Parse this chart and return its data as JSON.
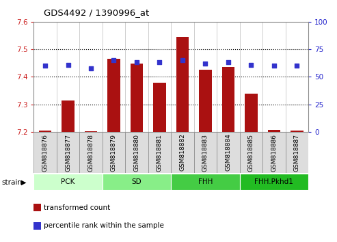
{
  "title": "GDS4492 / 1390996_at",
  "samples": [
    "GSM818876",
    "GSM818877",
    "GSM818878",
    "GSM818879",
    "GSM818880",
    "GSM818881",
    "GSM818882",
    "GSM818883",
    "GSM818884",
    "GSM818885",
    "GSM818886",
    "GSM818887"
  ],
  "transformed_counts": [
    7.205,
    7.315,
    7.202,
    7.465,
    7.448,
    7.378,
    7.545,
    7.425,
    7.435,
    7.34,
    7.208,
    7.205
  ],
  "percentile_ranks": [
    60,
    61,
    58,
    65,
    63,
    63,
    65,
    62,
    63,
    61,
    60,
    60
  ],
  "ylim_left": [
    7.2,
    7.6
  ],
  "ylim_right": [
    0,
    100
  ],
  "yticks_left": [
    7.2,
    7.3,
    7.4,
    7.5,
    7.6
  ],
  "yticks_right": [
    0,
    25,
    50,
    75,
    100
  ],
  "bar_color": "#aa1111",
  "dot_color": "#3333cc",
  "bar_bottom": 7.2,
  "groups": [
    {
      "label": "PCK",
      "start": 0,
      "end": 3,
      "color": "#ccffcc"
    },
    {
      "label": "SD",
      "start": 3,
      "end": 6,
      "color": "#88ee88"
    },
    {
      "label": "FHH",
      "start": 6,
      "end": 9,
      "color": "#44cc44"
    },
    {
      "label": "FHH.Pkhd1",
      "start": 9,
      "end": 12,
      "color": "#22bb22"
    }
  ],
  "strain_label": "strain",
  "legend_items": [
    {
      "color": "#aa1111",
      "label": "transformed count"
    },
    {
      "color": "#3333cc",
      "label": "percentile rank within the sample"
    }
  ],
  "left_axis_color": "#cc2222",
  "right_axis_color": "#2222cc",
  "tick_bg_color": "#dddddd",
  "tick_edge_color": "#888888"
}
